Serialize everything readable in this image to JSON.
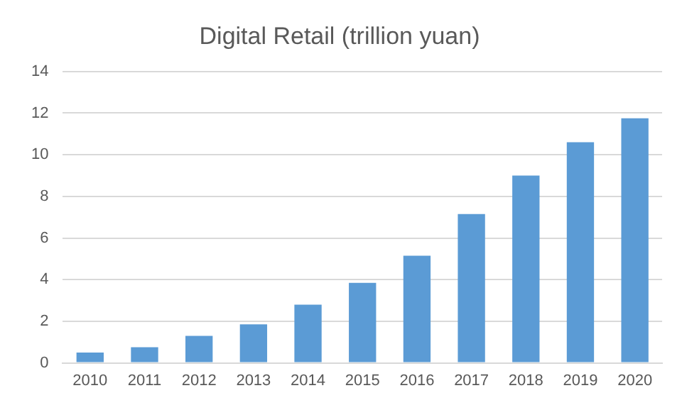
{
  "chart_data": {
    "type": "bar",
    "title": "Digital Retail (trillion yuan)",
    "categories": [
      "2010",
      "2011",
      "2012",
      "2013",
      "2014",
      "2015",
      "2016",
      "2017",
      "2018",
      "2019",
      "2020"
    ],
    "values": [
      0.5,
      0.75,
      1.3,
      1.85,
      2.8,
      3.85,
      5.15,
      7.15,
      9.0,
      10.6,
      11.75
    ],
    "color": "#5b9bd5",
    "ylim": [
      0,
      14
    ],
    "yticks": [
      0,
      2,
      4,
      6,
      8,
      10,
      12,
      14
    ],
    "grid": "y"
  }
}
